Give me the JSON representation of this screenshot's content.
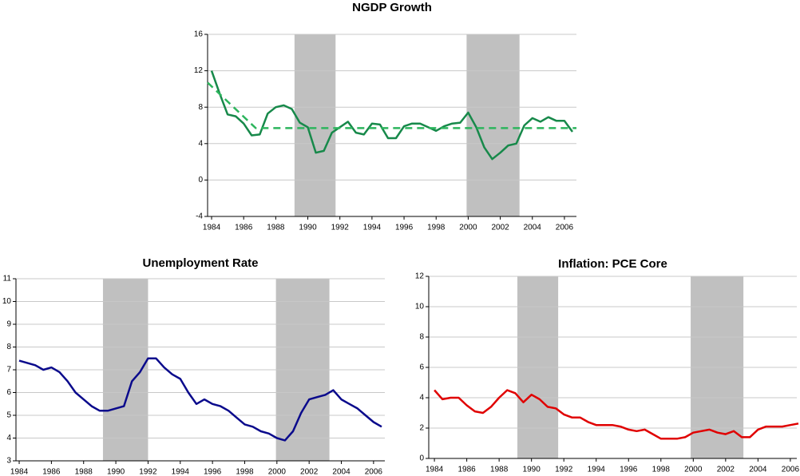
{
  "chart_data": [
    {
      "type": "line",
      "title": "NGDP Growth",
      "x": [
        1984.0,
        1984.5,
        1985.0,
        1985.5,
        1986.0,
        1986.5,
        1987.0,
        1987.5,
        1988.0,
        1988.5,
        1989.0,
        1989.5,
        1990.0,
        1990.5,
        1991.0,
        1991.5,
        1992.0,
        1992.5,
        1993.0,
        1993.5,
        1994.0,
        1994.5,
        1995.0,
        1995.5,
        1996.0,
        1996.5,
        1997.0,
        1997.5,
        1998.0,
        1998.5,
        1999.0,
        1999.5,
        2000.0,
        2000.5,
        2001.0,
        2001.5,
        2002.0,
        2002.5,
        2003.0,
        2003.5,
        2004.0,
        2004.5,
        2005.0,
        2005.5,
        2006.0,
        2006.5
      ],
      "series": [
        {
          "color": "#17894a",
          "values": [
            12,
            9.5,
            7.2,
            7.0,
            6.2,
            4.9,
            5.0,
            7.3,
            8.0,
            8.2,
            7.8,
            6.3,
            5.8,
            3.0,
            3.2,
            5.2,
            5.8,
            6.4,
            5.2,
            5.0,
            6.2,
            6.1,
            4.6,
            4.6,
            5.9,
            6.2,
            6.2,
            5.8,
            5.4,
            5.9,
            6.2,
            6.3,
            7.4,
            5.8,
            3.6,
            2.3,
            3.0,
            3.8,
            4.0,
            6.0,
            6.8,
            6.4,
            6.9,
            6.5,
            6.5,
            5.3
          ]
        },
        {
          "color": "#2db55d",
          "dashed": true,
          "x": [
            1983.75,
            1986.75,
            2006.75
          ],
          "values": [
            10.7,
            5.7,
            5.7
          ]
        }
      ],
      "shaded": [
        [
          1989.17,
          1991.73
        ],
        [
          1999.9,
          2003.2
        ]
      ],
      "xlim": [
        1983.75,
        2006.75
      ],
      "xticks": [
        1984,
        1986,
        1988,
        1990,
        1992,
        1994,
        1996,
        1998,
        2000,
        2002,
        2004,
        2006
      ],
      "ylim": [
        -4,
        16
      ],
      "yticks": [
        -4,
        0,
        4,
        8,
        12,
        16
      ],
      "grid": true
    },
    {
      "type": "line",
      "title": "Unemployment Rate",
      "x": [
        1984.0,
        1984.5,
        1985.0,
        1985.5,
        1986.0,
        1986.5,
        1987.0,
        1987.5,
        1988.0,
        1988.5,
        1989.0,
        1989.5,
        1990.0,
        1990.5,
        1991.0,
        1991.5,
        1992.0,
        1992.5,
        1993.0,
        1993.5,
        1994.0,
        1994.5,
        1995.0,
        1995.5,
        1996.0,
        1996.5,
        1997.0,
        1997.5,
        1998.0,
        1998.5,
        1999.0,
        1999.5,
        2000.0,
        2000.5,
        2001.0,
        2001.5,
        2002.0,
        2002.5,
        2003.0,
        2003.5,
        2004.0,
        2004.5,
        2005.0,
        2005.5,
        2006.0,
        2006.5
      ],
      "series": [
        {
          "color": "#0a0a8c",
          "values": [
            7.4,
            7.3,
            7.2,
            7.0,
            7.1,
            6.9,
            6.5,
            6.0,
            5.7,
            5.4,
            5.2,
            5.2,
            5.3,
            5.4,
            6.5,
            6.9,
            7.5,
            7.5,
            7.1,
            6.8,
            6.6,
            6.0,
            5.5,
            5.7,
            5.5,
            5.4,
            5.2,
            4.9,
            4.6,
            4.5,
            4.3,
            4.2,
            4.0,
            3.9,
            4.3,
            5.1,
            5.7,
            5.8,
            5.9,
            6.1,
            5.7,
            5.5,
            5.3,
            5.0,
            4.7,
            4.5
          ]
        }
      ],
      "shaded": [
        [
          1989.2,
          1992.0
        ],
        [
          1999.94,
          2003.26
        ]
      ],
      "xlim": [
        1983.8,
        2006.7
      ],
      "xticks": [
        1984,
        1986,
        1988,
        1990,
        1992,
        1994,
        1996,
        1998,
        2000,
        2002,
        2004,
        2006
      ],
      "ylim": [
        3,
        11
      ],
      "yticks": [
        3,
        4,
        5,
        6,
        7,
        8,
        9,
        10,
        11
      ],
      "grid": true
    },
    {
      "type": "line",
      "title": "Inflation:  PCE Core",
      "x": [
        1984.0,
        1984.5,
        1985.0,
        1985.5,
        1986.0,
        1986.5,
        1987.0,
        1987.5,
        1988.0,
        1988.5,
        1989.0,
        1989.5,
        1990.0,
        1990.5,
        1991.0,
        1991.5,
        1992.0,
        1992.5,
        1993.0,
        1993.5,
        1994.0,
        1994.5,
        1995.0,
        1995.5,
        1996.0,
        1996.5,
        1997.0,
        1997.5,
        1998.0,
        1998.5,
        1999.0,
        1999.5,
        2000.0,
        2000.5,
        2001.0,
        2001.5,
        2002.0,
        2002.5,
        2003.0,
        2003.5,
        2004.0,
        2004.5,
        2005.0,
        2005.5,
        2006.0,
        2006.5
      ],
      "series": [
        {
          "color": "#e00000",
          "values": [
            4.5,
            3.9,
            4.0,
            4.0,
            3.5,
            3.1,
            3.0,
            3.4,
            4.0,
            4.5,
            4.3,
            3.7,
            4.2,
            3.9,
            3.4,
            3.3,
            2.9,
            2.7,
            2.7,
            2.4,
            2.2,
            2.2,
            2.2,
            2.1,
            1.9,
            1.8,
            1.9,
            1.6,
            1.3,
            1.3,
            1.3,
            1.4,
            1.7,
            1.8,
            1.9,
            1.7,
            1.6,
            1.8,
            1.4,
            1.4,
            1.9,
            2.1,
            2.1,
            2.1,
            2.2,
            2.3
          ]
        }
      ],
      "shaded": [
        [
          1989.13,
          1991.65
        ],
        [
          1999.84,
          2003.1
        ]
      ],
      "xlim": [
        1983.65,
        2006.4
      ],
      "xticks": [
        1984,
        1986,
        1988,
        1990,
        1992,
        1994,
        1996,
        1998,
        2000,
        2002,
        2004,
        2006
      ],
      "ylim": [
        0,
        12
      ],
      "yticks": [
        0,
        2,
        4,
        6,
        8,
        10,
        12
      ],
      "grid": true
    }
  ]
}
